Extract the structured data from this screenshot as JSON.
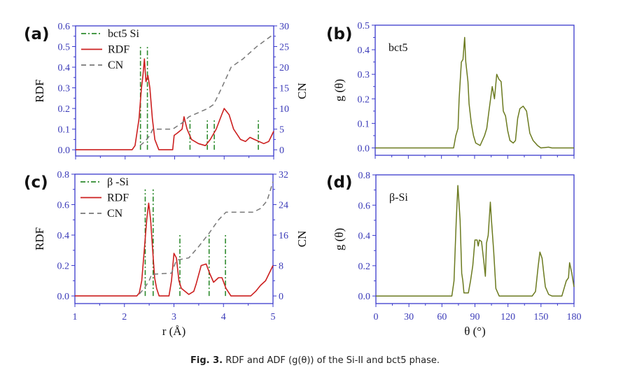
{
  "colors": {
    "axis": "#3a3acc",
    "tick_label": "#3a3ab8",
    "rdf": "#cc1f1f",
    "reference": "#2e8b2e",
    "cn": "#777777",
    "adf": "#6b7a1f",
    "text": "#111111"
  },
  "caption": {
    "label": "Fig. 3.",
    "text": "RDF and ADF (g(θ)) of the Si-II and bct5 phase."
  },
  "chart_data": [
    {
      "panel": "(a)",
      "type": "line",
      "ylabel": "RDF",
      "y2label": "CN",
      "xlabel": "",
      "xlim": [
        1,
        5
      ],
      "ylim": [
        -0.03,
        0.6
      ],
      "y2lim": [
        -1.5,
        30
      ],
      "xticks": [
        1,
        2,
        3,
        4,
        5
      ],
      "xtick_labels_shown": false,
      "yticks": [
        "0.0",
        "0.1",
        "0.2",
        "0.3",
        "0.4",
        "0.5",
        "0.6"
      ],
      "y2ticks": [
        "0",
        "5",
        "10",
        "15",
        "20",
        "25",
        "30"
      ],
      "legend": {
        "placement": "top-left",
        "entries": [
          "bct5 Si",
          "RDF",
          "CN"
        ]
      },
      "reference_lines": {
        "name": "bct5 Si",
        "x": [
          2.31,
          2.45,
          3.31,
          3.66,
          3.8,
          4.69
        ],
        "heights": [
          0.5,
          0.5,
          0.15,
          0.15,
          0.15,
          0.15
        ]
      },
      "series": [
        {
          "name": "RDF",
          "axis": "left",
          "x": [
            1,
            2.14,
            2.2,
            2.28,
            2.33,
            2.36,
            2.39,
            2.42,
            2.46,
            2.5,
            2.55,
            2.6,
            2.68,
            2.96,
            2.99,
            3.05,
            3.15,
            3.19,
            3.25,
            3.34,
            3.48,
            3.62,
            3.72,
            3.84,
            3.95,
            4.0,
            4.1,
            4.19,
            4.33,
            4.43,
            4.52,
            4.61,
            4.8,
            4.9,
            5.0
          ],
          "y": [
            0,
            0,
            0.02,
            0.15,
            0.3,
            0.36,
            0.44,
            0.33,
            0.36,
            0.3,
            0.15,
            0.05,
            0,
            0,
            0.07,
            0.08,
            0.1,
            0.16,
            0.1,
            0.05,
            0.03,
            0.02,
            0.05,
            0.1,
            0.17,
            0.2,
            0.17,
            0.1,
            0.05,
            0.04,
            0.06,
            0.05,
            0.03,
            0.04,
            0.09
          ]
        },
        {
          "name": "CN",
          "axis": "right",
          "x": [
            2.3,
            2.4,
            2.5,
            2.56,
            2.96,
            3.15,
            3.29,
            3.67,
            3.79,
            3.95,
            4.14,
            4.38,
            4.66,
            5.0
          ],
          "y": [
            1,
            2,
            3.5,
            5,
            5,
            6.5,
            8,
            10,
            11,
            15,
            20,
            22,
            25,
            28
          ]
        }
      ]
    },
    {
      "panel": "(b)",
      "type": "line",
      "ylabel": "g (θ)",
      "xlabel": "",
      "xlim": [
        0,
        180
      ],
      "ylim": [
        -0.03,
        0.5
      ],
      "xticks": [
        0,
        30,
        60,
        90,
        120,
        150,
        180
      ],
      "xtick_labels_shown": false,
      "yticks": [
        "0.0",
        "0.1",
        "0.2",
        "0.3",
        "0.4",
        "0.5"
      ],
      "annotation": "bct5",
      "series": [
        {
          "name": "ADF",
          "x": [
            0,
            71,
            73,
            75,
            76,
            78,
            79.5,
            81,
            82,
            84,
            85,
            87,
            89,
            91,
            95,
            99,
            101,
            103,
            106,
            108,
            110,
            112,
            114,
            116,
            118,
            120,
            122,
            125,
            127,
            129,
            131,
            134,
            137,
            140,
            143,
            147,
            150,
            157,
            160,
            180
          ],
          "y": [
            0,
            0,
            0.05,
            0.08,
            0.2,
            0.35,
            0.36,
            0.45,
            0.35,
            0.27,
            0.18,
            0.1,
            0.05,
            0.02,
            0.01,
            0.05,
            0.08,
            0.15,
            0.25,
            0.2,
            0.3,
            0.28,
            0.27,
            0.15,
            0.13,
            0.07,
            0.03,
            0.02,
            0.03,
            0.12,
            0.16,
            0.17,
            0.15,
            0.06,
            0.03,
            0.01,
            0,
            0.003,
            0,
            0
          ]
        }
      ]
    },
    {
      "panel": "(c)",
      "type": "line",
      "ylabel": "RDF",
      "y2label": "CN",
      "xlabel": "r (Å)",
      "xlim": [
        1,
        5
      ],
      "ylim": [
        -0.05,
        0.8
      ],
      "y2lim": [
        -2,
        32
      ],
      "xticks": [
        1,
        2,
        3,
        4,
        5
      ],
      "xtick_labels_shown": true,
      "yticks": [
        "0.0",
        "0.2",
        "0.4",
        "0.6",
        "0.8"
      ],
      "y2ticks": [
        "0",
        "8",
        "16",
        "24",
        "32"
      ],
      "legend": {
        "placement": "top-left",
        "entries": [
          "β -Si",
          "RDF",
          "CN"
        ]
      },
      "reference_lines": {
        "name": "β -Si",
        "x": [
          2.42,
          2.58,
          3.12,
          3.71,
          4.04
        ],
        "heights": [
          0.7,
          0.7,
          0.4,
          0.4,
          0.4
        ]
      },
      "series": [
        {
          "name": "RDF",
          "axis": "left",
          "x": [
            1,
            2.25,
            2.3,
            2.35,
            2.4,
            2.45,
            2.49,
            2.53,
            2.57,
            2.61,
            2.65,
            2.7,
            2.9,
            2.95,
            3.0,
            3.05,
            3.1,
            3.15,
            3.3,
            3.4,
            3.45,
            3.55,
            3.65,
            3.72,
            3.8,
            3.9,
            3.97,
            4.05,
            4.15,
            4.55,
            4.65,
            4.75,
            4.85,
            5.0
          ],
          "y": [
            0,
            0,
            0.02,
            0.1,
            0.3,
            0.5,
            0.61,
            0.5,
            0.3,
            0.12,
            0.05,
            0,
            0,
            0.1,
            0.28,
            0.25,
            0.1,
            0.05,
            0.01,
            0.03,
            0.08,
            0.2,
            0.21,
            0.15,
            0.09,
            0.12,
            0.12,
            0.05,
            0,
            0,
            0.03,
            0.07,
            0.1,
            0.2
          ]
        },
        {
          "name": "CN",
          "axis": "right",
          "x": [
            2.3,
            2.4,
            2.5,
            2.55,
            2.95,
            3.05,
            3.3,
            3.5,
            3.7,
            3.9,
            4.05,
            4.6,
            4.75,
            4.88,
            5.0
          ],
          "y": [
            0.5,
            2,
            4,
            5.7,
            6,
            9.4,
            10,
            13,
            16.3,
            20,
            22,
            22,
            23,
            25,
            30
          ]
        }
      ]
    },
    {
      "panel": "(d)",
      "type": "line",
      "ylabel": "g (θ)",
      "xlabel": "θ (°)",
      "xlim": [
        0,
        180
      ],
      "ylim": [
        -0.05,
        0.8
      ],
      "xticks": [
        0,
        30,
        60,
        90,
        120,
        150,
        180
      ],
      "xtick_labels_shown": true,
      "yticks": [
        "0.0",
        "0.2",
        "0.4",
        "0.6",
        "0.8"
      ],
      "annotation": "β-Si",
      "series": [
        {
          "name": "ADF",
          "x": [
            0,
            69,
            71,
            73,
            74.5,
            76.5,
            78,
            79,
            80,
            84,
            86,
            88,
            90,
            92,
            93,
            94,
            96,
            98,
            99.5,
            100.5,
            102,
            104,
            105,
            107,
            109,
            112,
            142,
            145,
            147.5,
            149,
            151,
            152.5,
            154,
            157,
            160,
            169,
            171,
            173,
            175,
            176,
            178,
            180
          ],
          "y": [
            0,
            0,
            0.1,
            0.5,
            0.73,
            0.5,
            0.15,
            0.1,
            0.02,
            0.02,
            0.1,
            0.2,
            0.37,
            0.37,
            0.33,
            0.37,
            0.36,
            0.23,
            0.13,
            0.35,
            0.4,
            0.62,
            0.5,
            0.3,
            0.05,
            0,
            0,
            0.03,
            0.2,
            0.29,
            0.25,
            0.15,
            0.06,
            0.01,
            0,
            0,
            0.05,
            0.1,
            0.12,
            0.22,
            0.15,
            0.06
          ]
        }
      ]
    }
  ]
}
